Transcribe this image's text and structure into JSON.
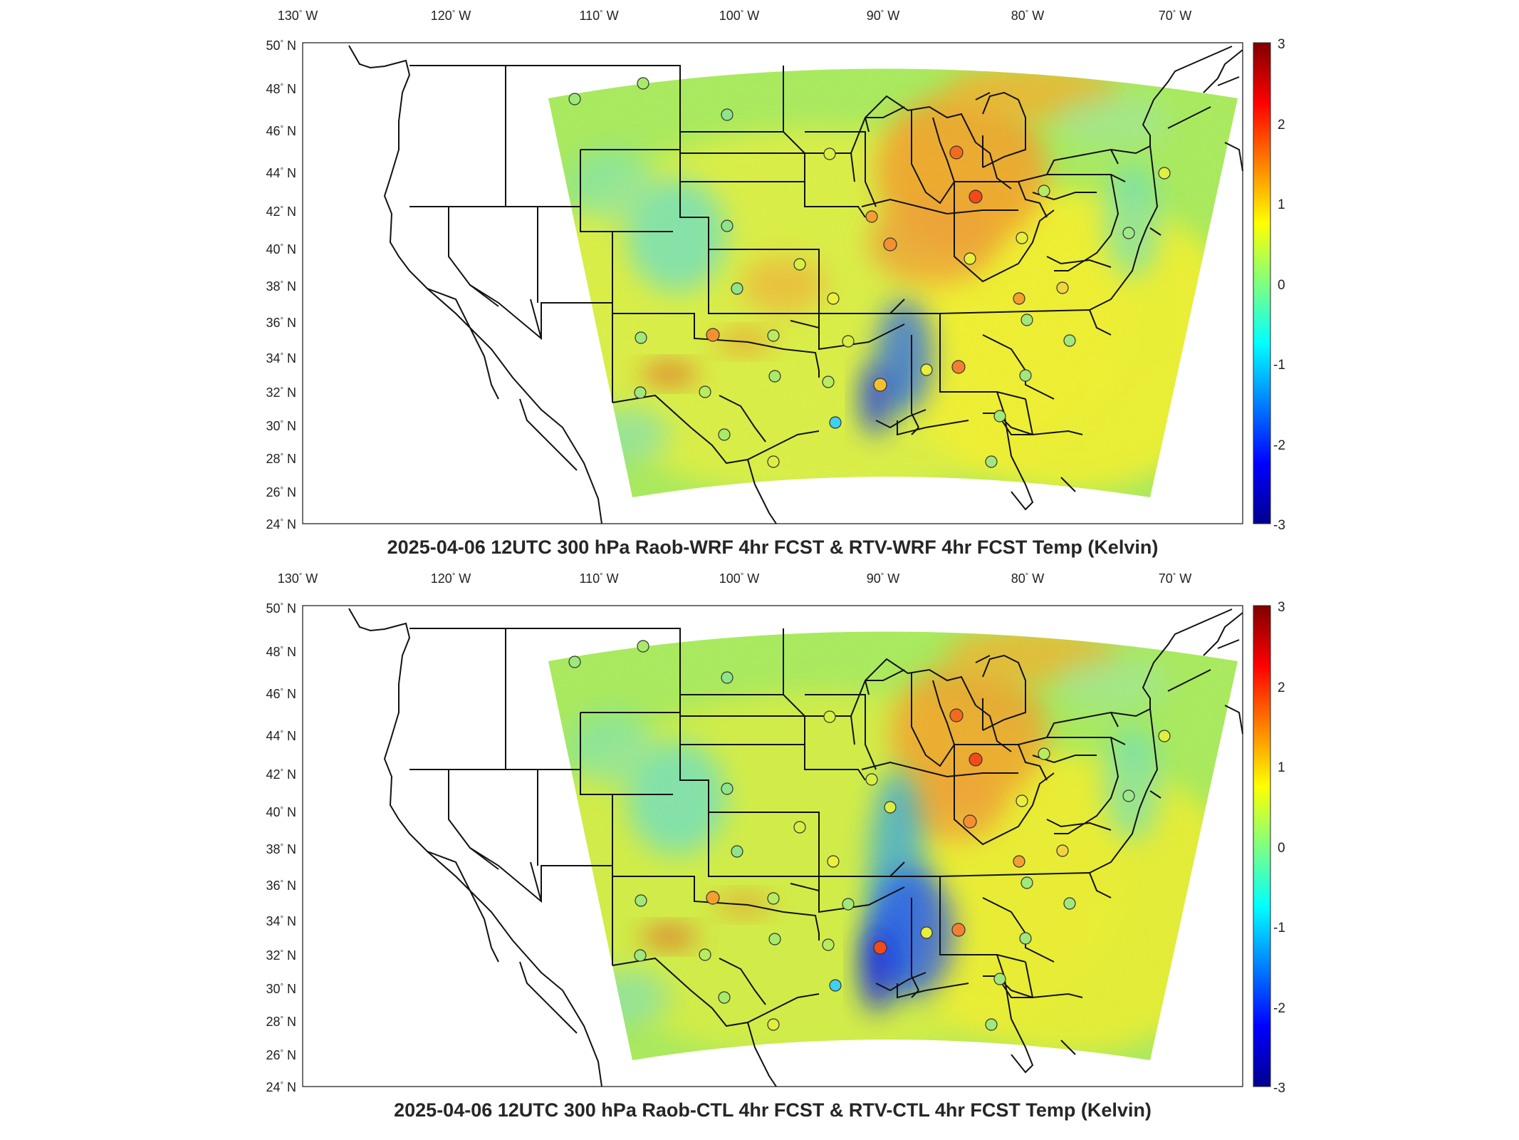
{
  "figure": {
    "panels": [
      {
        "id": "top",
        "title": "2025-04-06 12UTC 300 hPa Raob-WRF 4hr FCST & RTV-WRF 4hr FCST Temp (Kelvin)",
        "lon_ticks": [
          "130",
          "120",
          "110",
          "100",
          "90",
          "80",
          "70"
        ],
        "lon_unit": "W",
        "lat_ticks": [
          "50",
          "48",
          "46",
          "44",
          "42",
          "40",
          "38",
          "36",
          "34",
          "32",
          "30",
          "28",
          "26",
          "24"
        ],
        "lat_unit": "N",
        "colorbar_ticks": [
          "3",
          "2",
          "1",
          "0",
          "-1",
          "-2",
          "-3"
        ]
      },
      {
        "id": "bottom",
        "title": "2025-04-06 12UTC 300 hPa Raob-CTL 4hr FCST & RTV-CTL 4hr FCST Temp (Kelvin)",
        "lon_ticks": [
          "130",
          "120",
          "110",
          "100",
          "90",
          "80",
          "70"
        ],
        "lon_unit": "W",
        "lat_ticks": [
          "50",
          "48",
          "46",
          "44",
          "42",
          "40",
          "38",
          "36",
          "34",
          "32",
          "30",
          "28",
          "26",
          "24"
        ],
        "lat_unit": "N",
        "colorbar_ticks": [
          "3",
          "2",
          "1",
          "0",
          "-1",
          "-2",
          "-3"
        ]
      }
    ],
    "colormap": [
      "#00008f",
      "#0000ff",
      "#0080ff",
      "#00ffff",
      "#80ff80",
      "#ffff00",
      "#ff8000",
      "#ff0000",
      "#800000"
    ],
    "colorbar_range": [
      -3,
      3
    ]
  }
}
